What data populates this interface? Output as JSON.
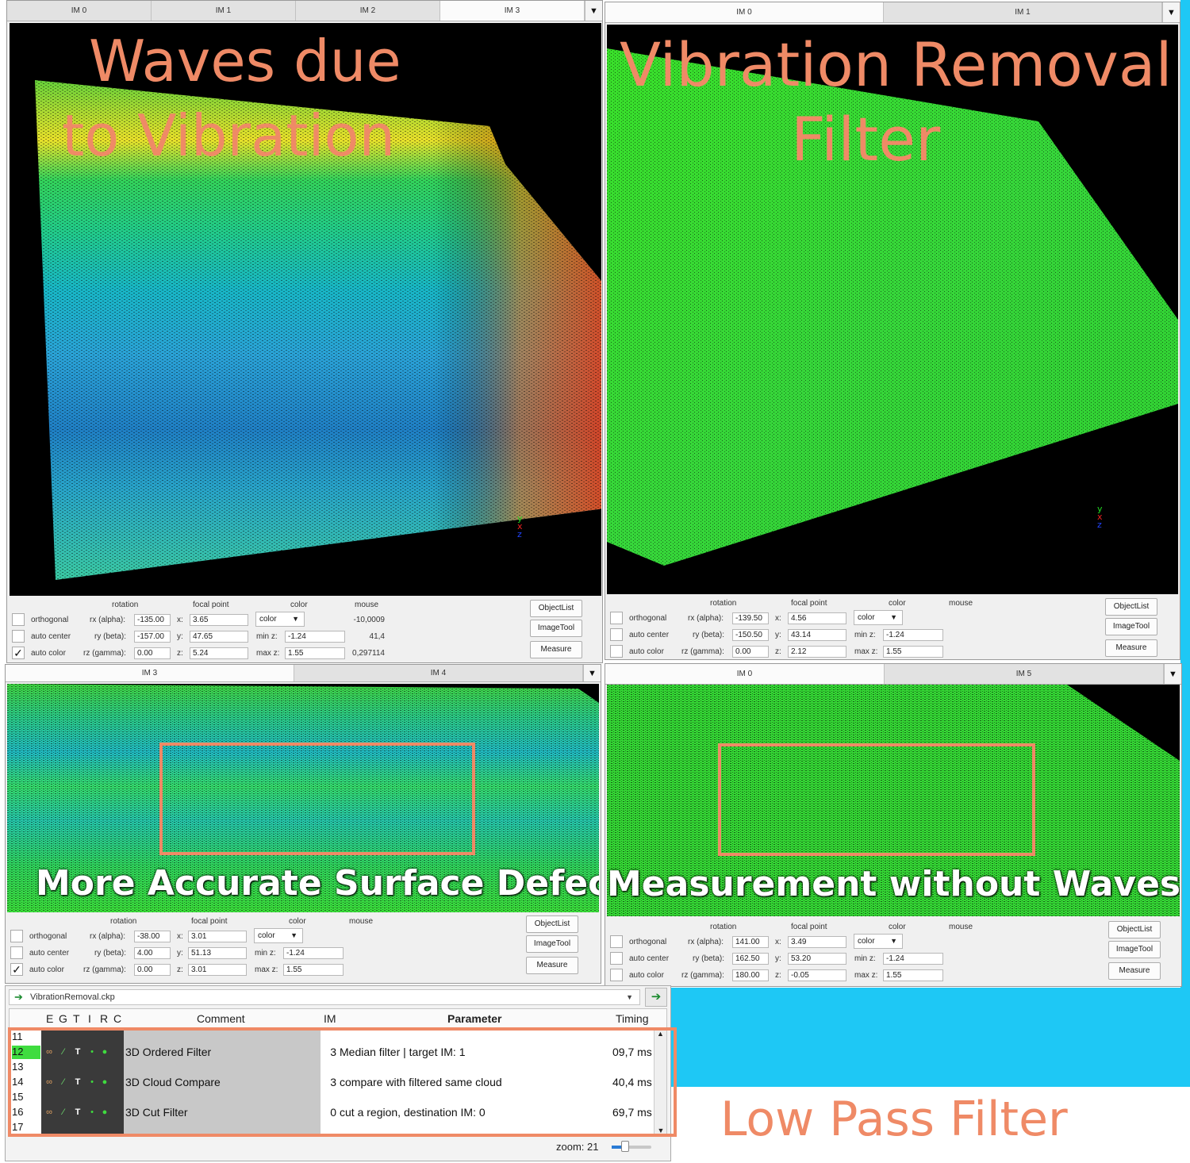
{
  "annotations": {
    "waves_line1": "Waves due",
    "waves_line2": "to Vibration",
    "removal_line1": "Vibration Removal",
    "removal_line2": "Filter",
    "defect_left": "More Accurate Surface Defect",
    "defect_right": "Measurement without Waves",
    "lowpass": "Low Pass Filter"
  },
  "colors": {
    "annotation": "#ef8a66",
    "background_accent": "#1ec8f5",
    "selected_row": "#3fdc3f"
  },
  "control_headers": {
    "rotation": "rotation",
    "focal_point": "focal point",
    "color": "color",
    "mouse": "mouse",
    "orthogonal": "orthogonal",
    "auto_center": "auto center",
    "auto_color": "auto color",
    "rx": "rx (alpha):",
    "ry": "ry (beta):",
    "rz": "rz (gamma):",
    "x": "x:",
    "y": "y:",
    "z": "z:",
    "minz": "min z:",
    "maxz": "max z:",
    "objectlist": "ObjectList",
    "imagetool": "ImageTool",
    "measure": "Measure",
    "check_mark": "✓",
    "dropdown_caret": "▼"
  },
  "viewers": [
    {
      "tabs": [
        "IM 0",
        "IM 1",
        "IM 2",
        "IM 3"
      ],
      "active_tab": "IM 3",
      "auto_color_checked": true,
      "rx": "-135.00",
      "ry": "-157.00",
      "rz": "0.00",
      "fx": "3.65",
      "fy": "47.65",
      "fz": "5.24",
      "color_mode": "color",
      "min_z": "-1.24",
      "max_z": "1.55",
      "mouse": [
        "-10,0009",
        "41,4",
        "0,297114"
      ]
    },
    {
      "tabs": [
        "IM 0",
        "IM 1"
      ],
      "active_tab": "IM 0",
      "auto_color_checked": false,
      "rx": "-139.50",
      "ry": "-150.50",
      "rz": "0.00",
      "fx": "4.56",
      "fy": "43.14",
      "fz": "2.12",
      "color_mode": "color",
      "min_z": "-1.24",
      "max_z": "1.55",
      "mouse": [
        "",
        "",
        ""
      ]
    },
    {
      "tabs": [
        "IM 3",
        "IM 4"
      ],
      "active_tab": "IM 3",
      "auto_color_checked": true,
      "rx": "-38.00",
      "ry": "4.00",
      "rz": "0.00",
      "fx": "3.01",
      "fy": "51.13",
      "fz": "3.01",
      "color_mode": "color",
      "min_z": "-1.24",
      "max_z": "1.55",
      "mouse": [
        "",
        "",
        ""
      ]
    },
    {
      "tabs": [
        "IM 0",
        "IM 5"
      ],
      "active_tab": "IM 0",
      "auto_color_checked": false,
      "rx": "141.00",
      "ry": "162.50",
      "rz": "180.00",
      "fx": "3.49",
      "fy": "53.20",
      "fz": "-0.05",
      "color_mode": "color",
      "min_z": "-1.24",
      "max_z": "1.55",
      "mouse": [
        "",
        "",
        ""
      ]
    }
  ],
  "axis_labels": {
    "x": "x",
    "y": "y",
    "z": "z"
  },
  "program": {
    "file": "VibrationRemoval.ckp",
    "columns": {
      "e": "E",
      "g": "G",
      "t": "T",
      "i": "I",
      "r": "R",
      "c": "C",
      "comment": "Comment",
      "im": "IM",
      "parameter": "Parameter",
      "timing": "Timing"
    },
    "rows": [
      {
        "n": "11",
        "comment": "",
        "im": "",
        "param": "",
        "timing": ""
      },
      {
        "n": "12",
        "comment": "3D Ordered Filter",
        "im": "3",
        "param": "Median filter | target IM: 1",
        "timing": "09,7 ms"
      },
      {
        "n": "13",
        "comment": "",
        "im": "",
        "param": "",
        "timing": ""
      },
      {
        "n": "14",
        "comment": "3D Cloud Compare",
        "im": "3",
        "param": "compare with filtered same cloud",
        "timing": "40,4 ms"
      },
      {
        "n": "15",
        "comment": "",
        "im": "",
        "param": "",
        "timing": ""
      },
      {
        "n": "16",
        "comment": "3D Cut Filter",
        "im": "0",
        "param": "cut a region, destination IM: 0",
        "timing": "69,7 ms"
      },
      {
        "n": "17",
        "comment": "",
        "im": "",
        "param": "",
        "timing": ""
      }
    ],
    "zoom_label": "zoom: 21",
    "go_glyph": "➔",
    "scroll_up": "▲",
    "scroll_down": "▼"
  }
}
